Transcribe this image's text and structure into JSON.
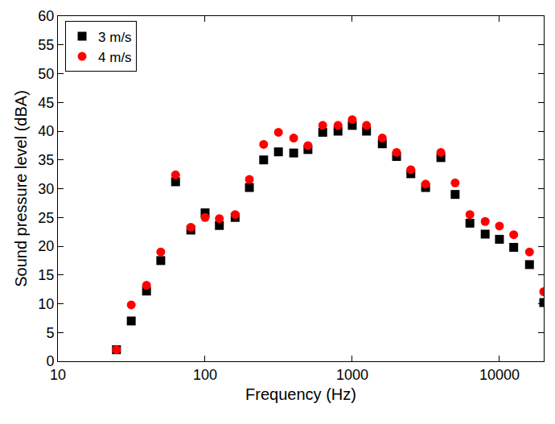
{
  "chart_data": {
    "type": "scatter",
    "x_label": "Frequency (Hz)",
    "y_label": "Sound pressure level (dBA)",
    "x": [
      25,
      31.5,
      40,
      50,
      63,
      80,
      100,
      125,
      160,
      200,
      250,
      315,
      400,
      500,
      630,
      800,
      1000,
      1250,
      1600,
      2000,
      2500,
      3150,
      4000,
      5000,
      6300,
      8000,
      10000,
      12500,
      16000,
      20000
    ],
    "series": [
      {
        "name": "3 m/s",
        "color": "#000000",
        "marker": "square",
        "values": [
          2,
          7,
          12.2,
          17.5,
          31.2,
          22.8,
          25.8,
          23.6,
          25,
          30.2,
          35,
          36.4,
          36.2,
          36.8,
          39.8,
          40,
          41,
          40,
          37.8,
          35.6,
          32.6,
          30.2,
          35.4,
          29,
          24,
          22.1,
          21.2,
          19.8,
          16.8,
          10.2
        ]
      },
      {
        "name": "4 m/s",
        "color": "#ff0000",
        "marker": "circle",
        "values": [
          2,
          9.8,
          13.2,
          19,
          32.4,
          23.3,
          25,
          24.8,
          25.5,
          31.6,
          37.7,
          39.8,
          38.8,
          37.5,
          41,
          41,
          42,
          41,
          38.8,
          36.3,
          33.3,
          30.8,
          36.3,
          31,
          25.5,
          24.3,
          23.5,
          22,
          19,
          12.1
        ]
      }
    ],
    "xlim": [
      10,
      20000
    ],
    "xticks": [
      10,
      100,
      1000,
      10000
    ],
    "ylim": [
      0,
      60
    ],
    "yticks": [
      0,
      5,
      10,
      15,
      20,
      25,
      30,
      35,
      40,
      45,
      50,
      55,
      60
    ],
    "log": "x",
    "grid": false,
    "legend": "upper left"
  }
}
